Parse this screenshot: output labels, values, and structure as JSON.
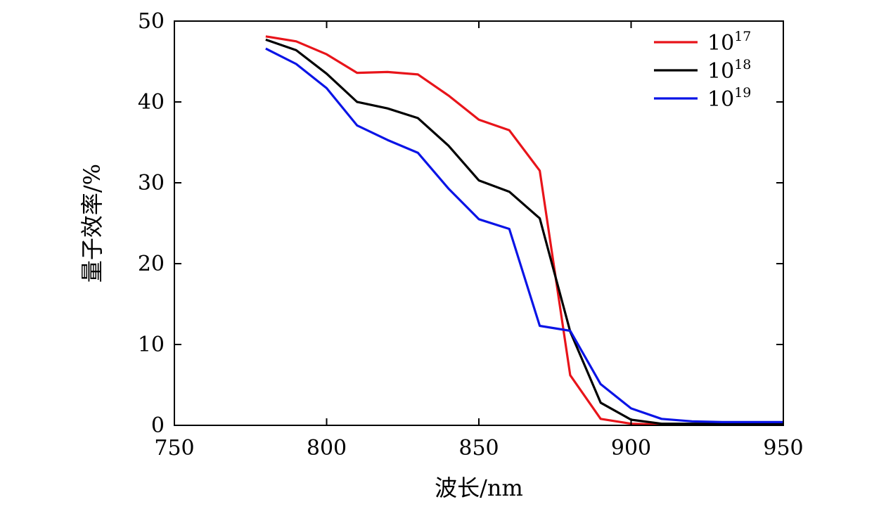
{
  "chart_data": {
    "type": "line",
    "xlabel": "波长/nm",
    "ylabel": "量子效率/%",
    "xlim": [
      750,
      950
    ],
    "ylim": [
      0,
      50
    ],
    "xticks": [
      750,
      800,
      850,
      900,
      950
    ],
    "yticks": [
      0,
      10,
      20,
      30,
      40,
      50
    ],
    "grid": false,
    "legend_position": "top-right",
    "series": [
      {
        "name": "10",
        "name_sup": "17",
        "color": "#e8141a",
        "x": [
          780,
          790,
          800,
          810,
          820,
          830,
          840,
          850,
          860,
          870,
          880,
          890,
          900,
          910,
          920,
          930,
          940,
          950
        ],
        "values": [
          48.1,
          47.5,
          45.9,
          43.6,
          43.7,
          43.4,
          40.8,
          37.8,
          36.5,
          31.5,
          6.2,
          0.8,
          0.2,
          0.1,
          0.1,
          0.1,
          0.1,
          0.1
        ]
      },
      {
        "name": "10",
        "name_sup": "18",
        "color": "#000000",
        "x": [
          780,
          790,
          800,
          810,
          820,
          830,
          840,
          850,
          860,
          870,
          880,
          890,
          900,
          910,
          920,
          930,
          940,
          950
        ],
        "values": [
          47.7,
          46.4,
          43.5,
          40.0,
          39.2,
          38.0,
          34.6,
          30.3,
          28.9,
          25.6,
          11.6,
          2.8,
          0.7,
          0.2,
          0.2,
          0.2,
          0.2,
          0.2
        ]
      },
      {
        "name": "10",
        "name_sup": "19",
        "color": "#0a14e6",
        "x": [
          780,
          790,
          800,
          810,
          820,
          830,
          840,
          850,
          860,
          870,
          880,
          890,
          900,
          910,
          920,
          930,
          940,
          950
        ],
        "values": [
          46.6,
          44.7,
          41.7,
          37.1,
          35.3,
          33.7,
          29.3,
          25.5,
          24.3,
          12.3,
          11.7,
          5.1,
          2.1,
          0.8,
          0.5,
          0.4,
          0.4,
          0.4
        ]
      }
    ]
  }
}
